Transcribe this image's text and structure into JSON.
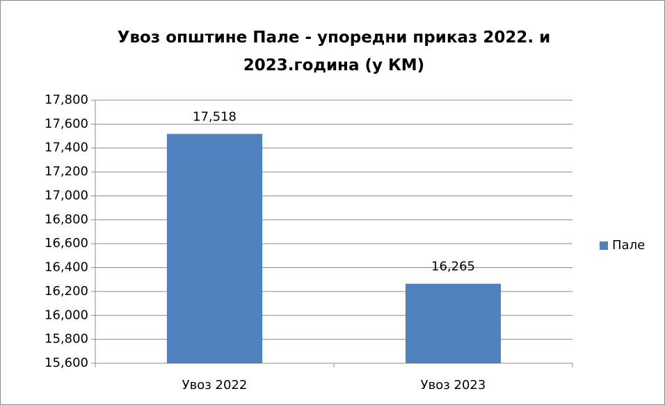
{
  "chart_data": {
    "type": "bar",
    "title": "Увоз општине Пале - упоредни приказ 2022. и 2023.година (у КМ)",
    "categories": [
      "Увоз 2022",
      "Увоз 2023"
    ],
    "series": [
      {
        "name": "Пале",
        "color": "#4f81bd",
        "values": [
          17518,
          16265
        ],
        "value_labels": [
          "17,518",
          "16,265"
        ]
      }
    ],
    "ylim": [
      15600,
      17800
    ],
    "yticks": [
      {
        "value": 15600,
        "label": "15,600"
      },
      {
        "value": 15800,
        "label": "15,800"
      },
      {
        "value": 16000,
        "label": "16,000"
      },
      {
        "value": 16200,
        "label": "16,200"
      },
      {
        "value": 16400,
        "label": "16,400"
      },
      {
        "value": 16600,
        "label": "16,600"
      },
      {
        "value": 16800,
        "label": "16,800"
      },
      {
        "value": 17000,
        "label": "17,000"
      },
      {
        "value": 17200,
        "label": "17,200"
      },
      {
        "value": 17400,
        "label": "17,400"
      },
      {
        "value": 17600,
        "label": "17,600"
      },
      {
        "value": 17800,
        "label": "17,800"
      }
    ],
    "grid": true,
    "legend": "right"
  }
}
